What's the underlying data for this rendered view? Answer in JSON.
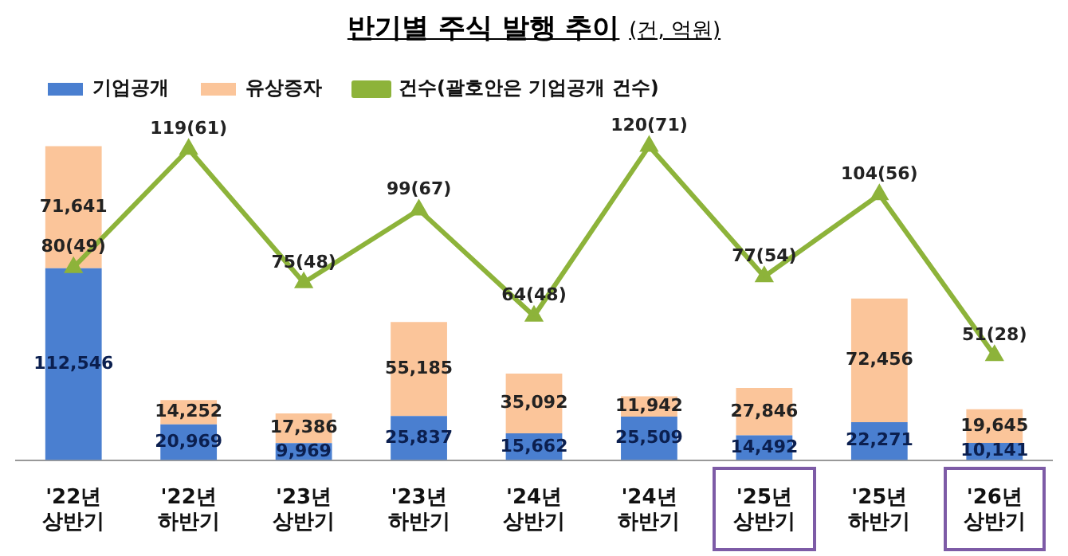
{
  "chart_data": {
    "type": "bar",
    "title": "반기별 주식 발행 추이",
    "subtitle": "(건, 억원)",
    "stacked": true,
    "legend": "top",
    "categories": [
      "'22년 상반기",
      "'22년 하반기",
      "'23년 상반기",
      "'23년 하반기",
      "'24년 상반기",
      "'24년 하반기",
      "'25년 상반기",
      "'25년 하반기",
      "'26년 상반기"
    ],
    "series": [
      {
        "name": "기업공개",
        "color": "#4a7fd0",
        "values": [
          112546,
          20969,
          9969,
          25837,
          15662,
          25509,
          14492,
          22271,
          10141
        ],
        "value_labels": [
          "112,546",
          "20,969",
          "9,969",
          "25,837",
          "15,662",
          "25,509",
          "14,492",
          "22,271",
          "10,141"
        ]
      },
      {
        "name": "유상증자",
        "color": "#fbc59a",
        "values": [
          71641,
          14252,
          17386,
          55185,
          35092,
          11942,
          27846,
          72456,
          19645
        ],
        "value_labels": [
          "71,641",
          "14,252",
          "17,386",
          "55,185",
          "35,092",
          "11,942",
          "27,846",
          "72,456",
          "19,645"
        ]
      },
      {
        "name": "건수(괄호안은 기업공개 건수)",
        "type": "line",
        "axis": "y2",
        "color": "#8db33a",
        "marker": "triangle",
        "values": [
          80,
          119,
          75,
          99,
          64,
          120,
          77,
          104,
          51
        ],
        "value_labels": [
          "80(49)",
          "119(61)",
          "75(48)",
          "99(67)",
          "64(48)",
          "120(71)",
          "77(54)",
          "104(56)",
          "51(28)"
        ]
      }
    ]
  }
}
